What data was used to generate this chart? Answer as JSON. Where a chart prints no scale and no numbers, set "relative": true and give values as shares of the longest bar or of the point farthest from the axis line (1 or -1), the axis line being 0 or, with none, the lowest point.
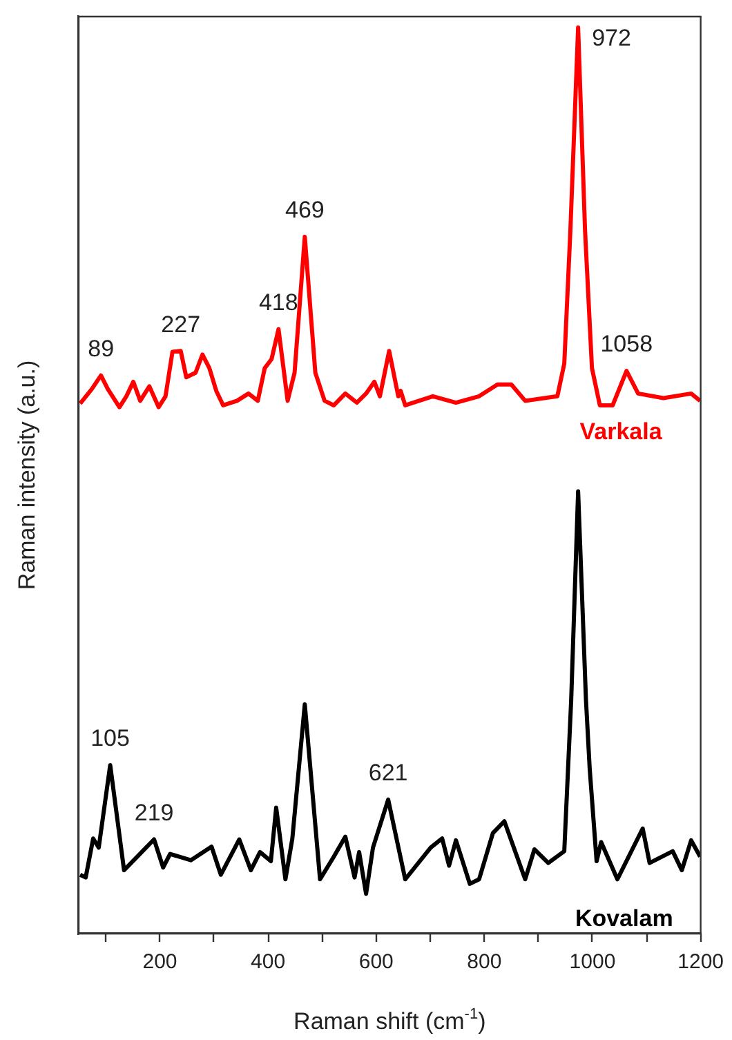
{
  "chart_data": {
    "type": "line",
    "relative": true,
    "xlabel": "Raman shift (cm$^{-1}$)",
    "ylabel": "Raman intensity (a.u.)",
    "xlim": [
      50,
      1200
    ],
    "xticks": [
      {
        "value": 100,
        "label": null
      },
      200,
      {
        "value": 300,
        "label": null
      },
      400,
      {
        "value": 500,
        "label": null
      },
      600,
      {
        "value": 700,
        "label": null
      },
      800,
      {
        "value": 900,
        "label": null
      },
      1000,
      {
        "value": 1100,
        "label": null
      },
      1200
    ],
    "grid": false,
    "legend": false,
    "marker": "none",
    "line_style": "solid",
    "series": [
      {
        "name": "Varkala",
        "color": "#ff0000",
        "x": [
          52.7,
          74.2,
          91.1,
          103.8,
          125.3,
          138.1,
          150.9,
          163.7,
          180.6,
          197.7,
          210.5,
          223.3,
          238.6,
          248.9,
          266,
          278.8,
          291.6,
          304.3,
          317.1,
          342.7,
          363.9,
          381.1,
          393.9,
          406.6,
          419.4,
          436.3,
          449.1,
          468,
          487.5,
          504.6,
          521.7,
          543,
          564.2,
          581.3,
          596.7,
          606.9,
          624,
          640.9,
          645.2,
          653.7,
          704.8,
          747.5,
          790.3,
          824.3,
          849.9,
          875.5,
          935,
          947.8,
          959.1,
          973.4,
          986.2,
          999,
          1013.6,
          1037.3,
          1062.9,
          1084.4,
          1131.2,
          1182.4,
          1199
        ],
        "values": [
          0.585,
          0.601,
          0.616,
          0.601,
          0.581,
          0.593,
          0.609,
          0.588,
          0.604,
          0.581,
          0.593,
          0.642,
          0.643,
          0.614,
          0.619,
          0.639,
          0.624,
          0.599,
          0.583,
          0.588,
          0.596,
          0.588,
          0.624,
          0.634,
          0.667,
          0.588,
          0.619,
          0.769,
          0.619,
          0.588,
          0.583,
          0.596,
          0.586,
          0.596,
          0.609,
          0.593,
          0.643,
          0.593,
          0.599,
          0.583,
          0.593,
          0.586,
          0.593,
          0.606,
          0.606,
          0.588,
          0.593,
          0.629,
          0.776,
          1,
          0.776,
          0.624,
          0.583,
          0.583,
          0.621,
          0.596,
          0.591,
          0.596,
          0.588
        ]
      },
      {
        "name": "Kovalam",
        "color": "#000000",
        "x": [
          52.7,
          62.9,
          76.7,
          87,
          108.2,
          133.8,
          155,
          189.3,
          206.1,
          218.9,
          257.3,
          295.6,
          312.8,
          346.8,
          368.3,
          385.2,
          405.3,
          415.1,
          432.2,
          445,
          468,
          496.2,
          521.7,
          543,
          560.1,
          568.5,
          581.3,
          594.1,
          622.2,
          653.7,
          700.8,
          722,
          734.8,
          747.5,
          773.1,
          790.3,
          815.8,
          837,
          875.5,
          892.6,
          918.2,
          947.8,
          960.6,
          973.4,
          987.9,
          994.8,
          1007.6,
          1016,
          1046,
          1092.8,
          1105.6,
          1148.3,
          1165.2,
          1182.4,
          1199
        ],
        "values": [
          0.065,
          0.062,
          0.105,
          0.095,
          0.186,
          0.07,
          0.083,
          0.104,
          0.073,
          0.088,
          0.081,
          0.096,
          0.065,
          0.104,
          0.07,
          0.09,
          0.08,
          0.139,
          0.06,
          0.105,
          0.253,
          0.06,
          0.085,
          0.107,
          0.062,
          0.09,
          0.044,
          0.095,
          0.148,
          0.06,
          0.095,
          0.105,
          0.075,
          0.103,
          0.055,
          0.06,
          0.111,
          0.124,
          0.06,
          0.093,
          0.078,
          0.091,
          0.258,
          0.488,
          0.258,
          0.182,
          0.08,
          0.101,
          0.06,
          0.116,
          0.078,
          0.091,
          0.07,
          0.103,
          0.085
        ]
      }
    ],
    "annotations": [
      {
        "text": "89",
        "x": 91.1,
        "y": 0.616
      },
      {
        "text": "227",
        "x": 238.6,
        "y": 0.643
      },
      {
        "text": "418",
        "x": 419.4,
        "y": 0.667
      },
      {
        "text": "469",
        "x": 468,
        "y": 0.769
      },
      {
        "text": "972",
        "x": 973.4,
        "y": 1
      },
      {
        "text": "1058",
        "x": 1062.9,
        "y": 0.621
      },
      {
        "text": "105",
        "x": 108.2,
        "y": 0.186
      },
      {
        "text": "219",
        "x": 189.3,
        "y": 0.104
      },
      {
        "text": "621",
        "x": 622.2,
        "y": 0.148
      }
    ]
  }
}
